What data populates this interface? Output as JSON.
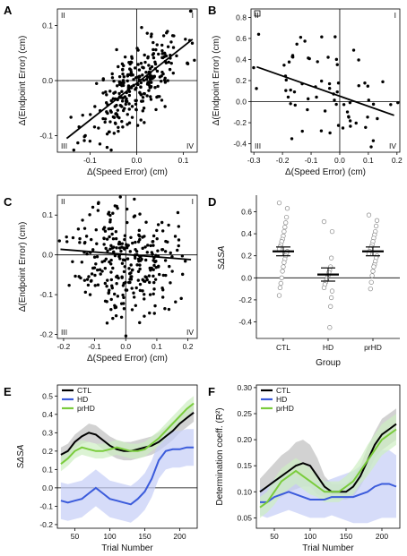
{
  "chart_data": [
    {
      "panel": "A",
      "type": "scatter",
      "xlabel": "Δ(Speed Error) (cm)",
      "ylabel": "Δ(Endpoint Error) (cm)",
      "xlim": [
        -0.17,
        0.13
      ],
      "ylim": [
        -0.13,
        0.13
      ],
      "xticks": [
        -0.1,
        0.0,
        0.1
      ],
      "xtick_labels": [
        "-0.1",
        "0.0",
        "0.1"
      ],
      "yticks": [
        -0.1,
        0.0,
        0.1
      ],
      "ytick_labels": [
        "-0.1",
        "0.0",
        "0.1"
      ],
      "quadrants": [
        "II",
        "I",
        "III",
        "IV"
      ],
      "fit_line": [
        [
          -0.15,
          -0.105
        ],
        [
          0.12,
          0.075
        ]
      ],
      "points": {
        "count": 280,
        "seed": 11,
        "x_center": 0.0,
        "x_sd": 0.05,
        "slope": 0.65,
        "intercept": -0.006,
        "noise": 0.035
      }
    },
    {
      "panel": "B",
      "type": "scatter",
      "xlabel": "Δ(Speed Error) (cm)",
      "ylabel": "Δ(Endpoint Error) (cm)",
      "xlim": [
        -0.31,
        0.21
      ],
      "ylim": [
        -0.48,
        0.88
      ],
      "xticks": [
        -0.3,
        -0.2,
        -0.1,
        0.0,
        0.1,
        0.2
      ],
      "xtick_labels": [
        "-0.3",
        "-0.2",
        "-0.1",
        "0.0",
        "0.1",
        "0.2"
      ],
      "yticks": [
        -0.4,
        -0.2,
        0.0,
        0.2,
        0.4,
        0.6,
        0.8
      ],
      "ytick_labels": [
        "-0.4",
        "-0.2",
        "0.0",
        "0.2",
        "0.4",
        "0.6",
        "0.8"
      ],
      "quadrants": [
        "II",
        "I",
        "III",
        "IV"
      ],
      "fit_line": [
        [
          -0.29,
          0.33
        ],
        [
          0.19,
          -0.13
        ]
      ],
      "points": {
        "count": 70,
        "seed": 23,
        "x_center": -0.05,
        "x_sd": 0.11,
        "slope": -0.95,
        "intercept": 0.05,
        "noise": 0.22
      }
    },
    {
      "panel": "C",
      "type": "scatter",
      "xlabel": "Δ(Speed Error) (cm)",
      "ylabel": "Δ(Endpoint Error) (cm)",
      "xlim": [
        -0.22,
        0.23
      ],
      "ylim": [
        -0.21,
        0.15
      ],
      "xticks": [
        -0.2,
        -0.1,
        0.0,
        0.1,
        0.2
      ],
      "xtick_labels": [
        "-0.2",
        "-0.1",
        "0.0",
        "0.1",
        "0.2"
      ],
      "yticks": [
        -0.2,
        -0.1,
        0.0,
        0.1
      ],
      "ytick_labels": [
        "-0.2",
        "-0.1",
        "0.0",
        "0.1"
      ],
      "quadrants": [
        "II",
        "I",
        "III",
        "IV"
      ],
      "fit_line": [
        [
          -0.21,
          0.014
        ],
        [
          0.21,
          -0.012
        ]
      ],
      "points": {
        "count": 300,
        "seed": 37,
        "x_center": 0.0,
        "x_sd": 0.08,
        "slope": -0.06,
        "intercept": -0.008,
        "noise": 0.07
      }
    },
    {
      "panel": "D",
      "type": "scatter",
      "xlabel": "Group",
      "ylabel": "SΔSA",
      "xlim": [
        0.4,
        3.6
      ],
      "ylim": [
        -0.55,
        0.75
      ],
      "yticks": [
        -0.4,
        -0.2,
        0.0,
        0.2,
        0.4,
        0.6
      ],
      "ytick_labels": [
        "-0.4",
        "-0.2",
        "0.0",
        "0.2",
        "0.4",
        "0.6"
      ],
      "categories": [
        "CTL",
        "HD",
        "prHD"
      ],
      "groups": [
        {
          "name": "CTL",
          "mean": 0.24,
          "sem": 0.04,
          "values": [
            0.68,
            0.63,
            0.55,
            0.5,
            0.46,
            0.42,
            0.38,
            0.35,
            0.33,
            0.3,
            0.28,
            0.26,
            0.24,
            0.22,
            0.2,
            0.17,
            0.14,
            0.1,
            0.06,
            0.0,
            -0.05,
            -0.09,
            -0.16
          ]
        },
        {
          "name": "HD",
          "mean": 0.03,
          "sem": 0.06,
          "values": [
            0.51,
            0.42,
            0.18,
            0.1,
            0.07,
            0.05,
            0.02,
            0.0,
            -0.02,
            -0.04,
            -0.06,
            -0.09,
            -0.12,
            -0.18,
            -0.26,
            -0.45
          ]
        },
        {
          "name": "prHD",
          "mean": 0.24,
          "sem": 0.04,
          "values": [
            0.57,
            0.52,
            0.47,
            0.42,
            0.39,
            0.36,
            0.33,
            0.3,
            0.28,
            0.26,
            0.24,
            0.22,
            0.2,
            0.18,
            0.15,
            0.12,
            0.1,
            0.06,
            0.02,
            -0.04,
            -0.1
          ]
        }
      ]
    },
    {
      "panel": "E",
      "type": "line",
      "xlabel": "Trial Number",
      "ylabel": "SΔSA",
      "xlim": [
        25,
        225
      ],
      "ylim": [
        -0.22,
        0.56
      ],
      "xticks": [
        50,
        100,
        150,
        200
      ],
      "xtick_labels": [
        "50",
        "100",
        "150",
        "200"
      ],
      "yticks": [
        -0.2,
        -0.1,
        0.0,
        0.1,
        0.2,
        0.3,
        0.4,
        0.5
      ],
      "ytick_labels": [
        "-0.2",
        "-0.1",
        "0.0",
        "0.1",
        "0.2",
        "0.3",
        "0.4",
        "0.5"
      ],
      "x": [
        30,
        40,
        50,
        60,
        70,
        80,
        90,
        100,
        110,
        120,
        130,
        140,
        150,
        160,
        170,
        180,
        190,
        200,
        210,
        220
      ],
      "legend": [
        "CTL",
        "HD",
        "prHD"
      ],
      "series": [
        {
          "name": "CTL",
          "color": "#000000",
          "band": "#bfbfbf",
          "values": [
            0.18,
            0.2,
            0.25,
            0.28,
            0.3,
            0.29,
            0.26,
            0.23,
            0.21,
            0.2,
            0.2,
            0.21,
            0.22,
            0.23,
            0.25,
            0.28,
            0.31,
            0.35,
            0.38,
            0.41
          ],
          "sem": [
            0.04,
            0.04,
            0.04,
            0.04,
            0.05,
            0.05,
            0.05,
            0.05,
            0.05,
            0.05,
            0.05,
            0.05,
            0.05,
            0.05,
            0.05,
            0.05,
            0.05,
            0.05,
            0.05,
            0.05
          ]
        },
        {
          "name": "HD",
          "color": "#3b5bdb",
          "band": "#c5cdf7",
          "values": [
            -0.07,
            -0.08,
            -0.07,
            -0.06,
            -0.03,
            0.0,
            -0.03,
            -0.06,
            -0.07,
            -0.08,
            -0.09,
            -0.06,
            -0.02,
            0.05,
            0.15,
            0.2,
            0.21,
            0.21,
            0.22,
            0.22
          ],
          "sem": [
            0.1,
            0.1,
            0.1,
            0.1,
            0.1,
            0.1,
            0.1,
            0.1,
            0.1,
            0.1,
            0.1,
            0.1,
            0.1,
            0.1,
            0.1,
            0.1,
            0.1,
            0.1,
            0.1,
            0.1
          ]
        },
        {
          "name": "prHD",
          "color": "#7acc3c",
          "band": "#cdeec2",
          "values": [
            0.13,
            0.16,
            0.2,
            0.22,
            0.21,
            0.2,
            0.2,
            0.21,
            0.22,
            0.21,
            0.2,
            0.2,
            0.21,
            0.24,
            0.27,
            0.31,
            0.35,
            0.39,
            0.43,
            0.46
          ],
          "sem": [
            0.04,
            0.04,
            0.04,
            0.04,
            0.04,
            0.04,
            0.04,
            0.04,
            0.04,
            0.04,
            0.04,
            0.04,
            0.04,
            0.04,
            0.04,
            0.04,
            0.04,
            0.04,
            0.04,
            0.04
          ]
        }
      ]
    },
    {
      "panel": "F",
      "type": "line",
      "xlabel": "Trial Number",
      "ylabel": "Determination coeff. (R²)",
      "xlim": [
        25,
        225
      ],
      "ylim": [
        0.03,
        0.305
      ],
      "xticks": [
        50,
        100,
        150,
        200
      ],
      "xtick_labels": [
        "50",
        "100",
        "150",
        "200"
      ],
      "yticks": [
        0.05,
        0.1,
        0.15,
        0.2,
        0.25,
        0.3
      ],
      "ytick_labels": [
        "0.05",
        "0.10",
        "0.15",
        "0.20",
        "0.25",
        "0.30"
      ],
      "x": [
        30,
        40,
        50,
        60,
        70,
        80,
        90,
        100,
        110,
        120,
        130,
        140,
        150,
        160,
        170,
        180,
        190,
        200,
        210,
        220
      ],
      "legend": [
        "CTL",
        "HD",
        "prHD"
      ],
      "series": [
        {
          "name": "CTL",
          "color": "#000000",
          "band": "#bfbfbf",
          "values": [
            0.1,
            0.11,
            0.12,
            0.13,
            0.14,
            0.15,
            0.155,
            0.15,
            0.13,
            0.11,
            0.1,
            0.1,
            0.1,
            0.11,
            0.13,
            0.16,
            0.19,
            0.21,
            0.22,
            0.23
          ],
          "sem": [
            0.025,
            0.03,
            0.035,
            0.04,
            0.04,
            0.045,
            0.045,
            0.04,
            0.035,
            0.02,
            0.015,
            0.015,
            0.015,
            0.02,
            0.02,
            0.025,
            0.025,
            0.03,
            0.03,
            0.03
          ]
        },
        {
          "name": "HD",
          "color": "#3b5bdb",
          "band": "#c5cdf7",
          "values": [
            0.08,
            0.08,
            0.09,
            0.095,
            0.1,
            0.095,
            0.09,
            0.085,
            0.085,
            0.085,
            0.09,
            0.09,
            0.09,
            0.09,
            0.095,
            0.1,
            0.11,
            0.115,
            0.115,
            0.11
          ],
          "sem": [
            0.025,
            0.03,
            0.035,
            0.035,
            0.035,
            0.035,
            0.035,
            0.035,
            0.035,
            0.035,
            0.035,
            0.04,
            0.045,
            0.05,
            0.055,
            0.06,
            0.065,
            0.065,
            0.065,
            0.06
          ]
        },
        {
          "name": "prHD",
          "color": "#7acc3c",
          "band": "#cdeec2",
          "values": [
            0.07,
            0.08,
            0.1,
            0.12,
            0.13,
            0.14,
            0.13,
            0.12,
            0.11,
            0.1,
            0.1,
            0.1,
            0.11,
            0.12,
            0.14,
            0.16,
            0.18,
            0.2,
            0.21,
            0.22
          ],
          "sem": [
            0.02,
            0.02,
            0.025,
            0.025,
            0.025,
            0.025,
            0.025,
            0.025,
            0.02,
            0.02,
            0.02,
            0.02,
            0.02,
            0.025,
            0.025,
            0.03,
            0.03,
            0.03,
            0.03,
            0.03
          ]
        }
      ]
    }
  ]
}
